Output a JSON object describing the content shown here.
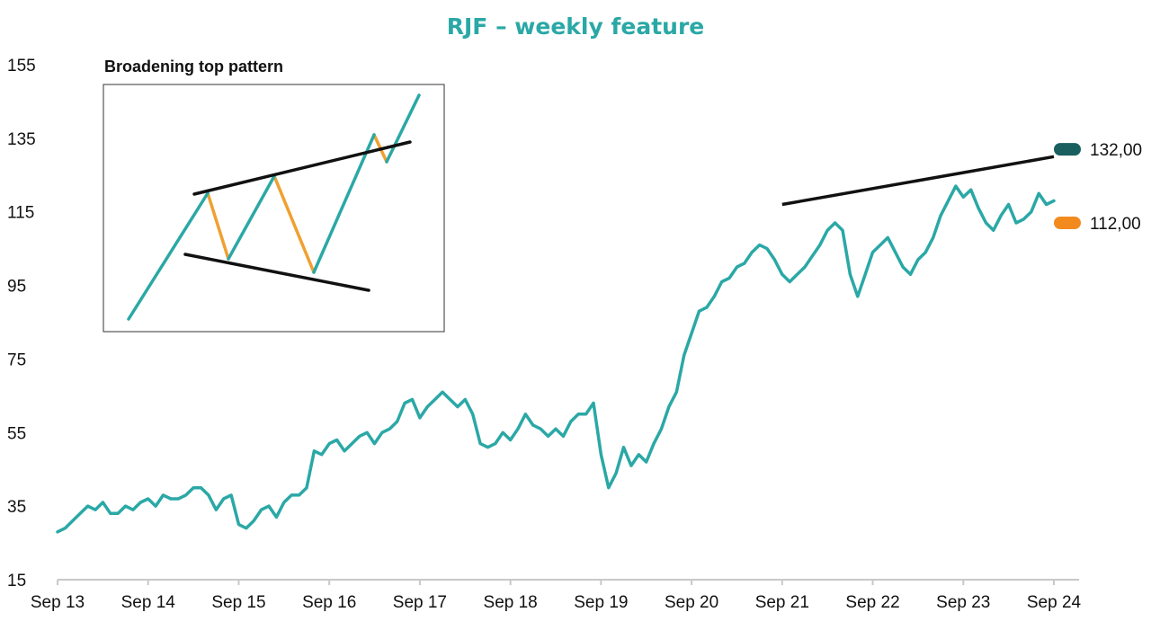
{
  "chart_data": {
    "type": "line",
    "title": "RJF – weekly feature",
    "xlabel": "",
    "ylabel": "",
    "x_ticks": [
      "Sep 13",
      "Sep 14",
      "Sep 15",
      "Sep 16",
      "Sep 17",
      "Sep 18",
      "Sep 19",
      "Sep 20",
      "Sep 21",
      "Sep 22",
      "Sep 23",
      "Sep 24"
    ],
    "y_ticks": [
      155,
      135,
      115,
      95,
      75,
      55,
      35,
      15
    ],
    "ylim": [
      15,
      155
    ],
    "grid": false,
    "series": [
      {
        "name": "",
        "color": "#2aa8a6",
        "points": [
          [
            "2013-09",
            28
          ],
          [
            "2013-10",
            29
          ],
          [
            "2013-11",
            31
          ],
          [
            "2013-12",
            33
          ],
          [
            "2014-01",
            35
          ],
          [
            "2014-02",
            34
          ],
          [
            "2014-03",
            36
          ],
          [
            "2014-04",
            33
          ],
          [
            "2014-05",
            33
          ],
          [
            "2014-06",
            35
          ],
          [
            "2014-07",
            34
          ],
          [
            "2014-08",
            36
          ],
          [
            "2014-09",
            37
          ],
          [
            "2014-10",
            35
          ],
          [
            "2014-11",
            38
          ],
          [
            "2014-12",
            37
          ],
          [
            "2015-01",
            37
          ],
          [
            "2015-02",
            38
          ],
          [
            "2015-03",
            40
          ],
          [
            "2015-04",
            40
          ],
          [
            "2015-05",
            38
          ],
          [
            "2015-06",
            34
          ],
          [
            "2015-07",
            37
          ],
          [
            "2015-08",
            38
          ],
          [
            "2015-09",
            30
          ],
          [
            "2015-10",
            29
          ],
          [
            "2015-11",
            31
          ],
          [
            "2015-12",
            34
          ],
          [
            "2016-01",
            35
          ],
          [
            "2016-02",
            32
          ],
          [
            "2016-03",
            36
          ],
          [
            "2016-04",
            38
          ],
          [
            "2016-05",
            38
          ],
          [
            "2016-06",
            40
          ],
          [
            "2016-07",
            50
          ],
          [
            "2016-08",
            49
          ],
          [
            "2016-09",
            52
          ],
          [
            "2016-10",
            53
          ],
          [
            "2016-11",
            50
          ],
          [
            "2016-12",
            52
          ],
          [
            "2017-01",
            54
          ],
          [
            "2017-02",
            55
          ],
          [
            "2017-03",
            52
          ],
          [
            "2017-04",
            55
          ],
          [
            "2017-05",
            56
          ],
          [
            "2017-06",
            58
          ],
          [
            "2017-07",
            63
          ],
          [
            "2017-08",
            64
          ],
          [
            "2017-09",
            59
          ],
          [
            "2017-10",
            62
          ],
          [
            "2017-11",
            64
          ],
          [
            "2017-12",
            66
          ],
          [
            "2018-01",
            64
          ],
          [
            "2018-02",
            62
          ],
          [
            "2018-03",
            64
          ],
          [
            "2018-04",
            60
          ],
          [
            "2018-05",
            52
          ],
          [
            "2018-06",
            51
          ],
          [
            "2018-07",
            52
          ],
          [
            "2018-08",
            55
          ],
          [
            "2018-09",
            53
          ],
          [
            "2018-10",
            56
          ],
          [
            "2018-11",
            60
          ],
          [
            "2018-12",
            57
          ],
          [
            "2019-01",
            56
          ],
          [
            "2019-02",
            54
          ],
          [
            "2019-03",
            56
          ],
          [
            "2019-04",
            54
          ],
          [
            "2019-05",
            58
          ],
          [
            "2019-06",
            60
          ],
          [
            "2019-07",
            60
          ],
          [
            "2019-08",
            63
          ],
          [
            "2019-09",
            49
          ],
          [
            "2019-10",
            40
          ],
          [
            "2019-11",
            44
          ],
          [
            "2019-12",
            51
          ],
          [
            "2020-01",
            46
          ],
          [
            "2020-02",
            49
          ],
          [
            "2020-03",
            47
          ],
          [
            "2020-04",
            52
          ],
          [
            "2020-05",
            56
          ],
          [
            "2020-06",
            62
          ],
          [
            "2020-07",
            66
          ],
          [
            "2020-08",
            76
          ],
          [
            "2020-09",
            82
          ],
          [
            "2020-10",
            88
          ],
          [
            "2020-11",
            89
          ],
          [
            "2020-12",
            92
          ],
          [
            "2021-01",
            96
          ],
          [
            "2021-02",
            97
          ],
          [
            "2021-03",
            100
          ],
          [
            "2021-04",
            101
          ],
          [
            "2021-05",
            104
          ],
          [
            "2021-06",
            106
          ],
          [
            "2021-07",
            105
          ],
          [
            "2021-08",
            102
          ],
          [
            "2021-09",
            98
          ],
          [
            "2021-10",
            96
          ],
          [
            "2021-11",
            98
          ],
          [
            "2021-12",
            100
          ],
          [
            "2022-01",
            103
          ],
          [
            "2022-02",
            106
          ],
          [
            "2022-03",
            110
          ],
          [
            "2022-04",
            112
          ],
          [
            "2022-05",
            110
          ],
          [
            "2022-06",
            98
          ],
          [
            "2022-07",
            92
          ],
          [
            "2022-08",
            98
          ],
          [
            "2022-09",
            104
          ],
          [
            "2022-10",
            106
          ],
          [
            "2022-11",
            108
          ],
          [
            "2022-12",
            104
          ],
          [
            "2023-01",
            100
          ],
          [
            "2023-02",
            98
          ],
          [
            "2023-03",
            102
          ],
          [
            "2023-04",
            104
          ],
          [
            "2023-05",
            108
          ],
          [
            "2023-06",
            114
          ],
          [
            "2023-07",
            118
          ],
          [
            "2023-08",
            122
          ],
          [
            "2023-09",
            119
          ],
          [
            "2023-10",
            121
          ],
          [
            "2023-11",
            116
          ],
          [
            "2023-12",
            112
          ],
          [
            "2024-01",
            110
          ],
          [
            "2024-02",
            114
          ],
          [
            "2024-03",
            117
          ],
          [
            "2024-04",
            112
          ],
          [
            "2024-05",
            113
          ],
          [
            "2024-06",
            115
          ],
          [
            "2024-07",
            120
          ],
          [
            "2024-08",
            117
          ],
          [
            "2024-09",
            118
          ]
        ]
      }
    ],
    "trendline": {
      "color": "#111111",
      "from": [
        "2021-09",
        117
      ],
      "to": [
        "2024-09",
        130
      ]
    },
    "value_labels": [
      {
        "text": "132,00",
        "value": 132,
        "color": "#1a5f5f"
      },
      {
        "text": "112,00",
        "value": 112,
        "color": "#f28a1e"
      }
    ],
    "inset": {
      "title": "Broadening top pattern",
      "colors": {
        "up": "#2aa8a6",
        "down": "#f0a030",
        "line": "#111111"
      }
    }
  }
}
